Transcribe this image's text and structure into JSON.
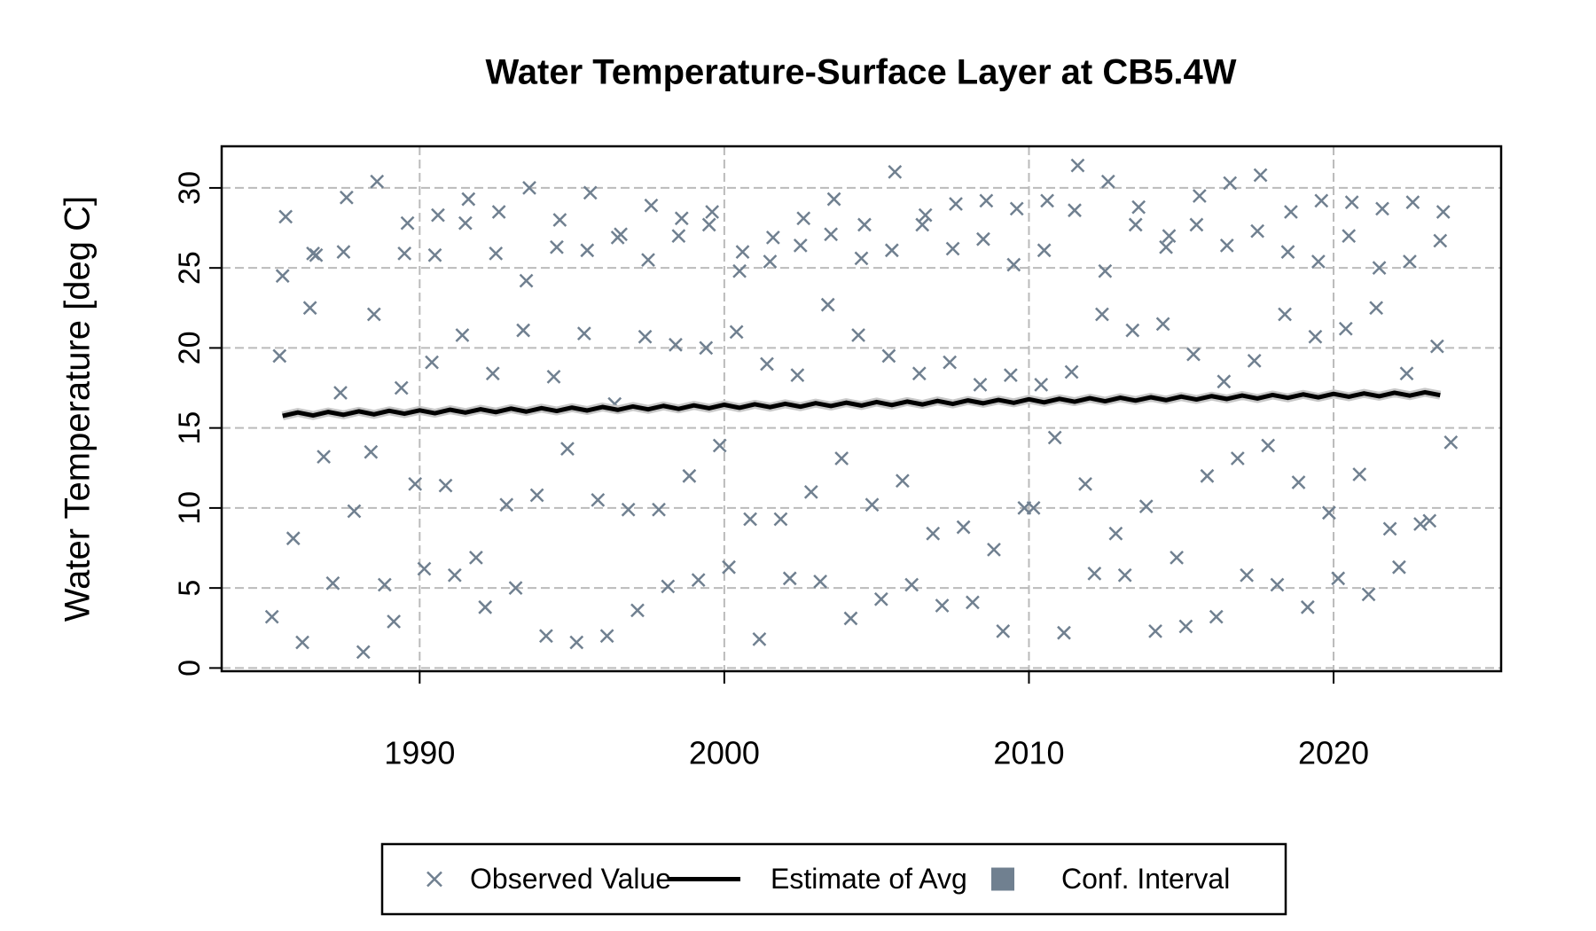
{
  "chart_data": {
    "type": "scatter",
    "title": "Water Temperature-Surface Layer at CB5.4W",
    "y_label": "Water Temperature [deg C]",
    "xlim": [
      1983.5,
      2025.5
    ],
    "ylim": [
      -0.2,
      32.6
    ],
    "xticks": [
      1990,
      2000,
      2010,
      2020
    ],
    "yticks": [
      0,
      5,
      10,
      15,
      20,
      25,
      30
    ],
    "grid": true,
    "legend_position": "bottom",
    "series": [
      {
        "name": "Observed Value",
        "color": "#708090",
        "marker": "x",
        "x": [
          1985.15,
          1985.4,
          1985.5,
          1985.6,
          1985.85,
          1986.15,
          1986.4,
          1986.5,
          1986.6,
          1986.85,
          1987.15,
          1987.4,
          1987.5,
          1987.6,
          1987.85,
          1988.15,
          1988.4,
          1988.5,
          1988.6,
          1988.85,
          1989.15,
          1989.4,
          1989.5,
          1989.6,
          1989.85,
          1990.15,
          1990.4,
          1990.5,
          1990.6,
          1990.85,
          1991.15,
          1991.4,
          1991.5,
          1991.6,
          1991.85,
          1992.15,
          1992.4,
          1992.5,
          1992.6,
          1992.85,
          1993.15,
          1993.4,
          1993.5,
          1993.6,
          1993.85,
          1994.15,
          1994.4,
          1994.5,
          1994.6,
          1994.85,
          1995.15,
          1995.4,
          1995.5,
          1995.6,
          1995.85,
          1996.15,
          1996.4,
          1996.5,
          1996.6,
          1996.85,
          1997.15,
          1997.4,
          1997.5,
          1997.6,
          1997.85,
          1998.15,
          1998.4,
          1998.5,
          1998.6,
          1998.85,
          1999.15,
          1999.4,
          1999.5,
          1999.6,
          1999.85,
          2000.15,
          2000.4,
          2000.5,
          2000.6,
          2000.85,
          2001.15,
          2001.4,
          2001.5,
          2001.6,
          2001.85,
          2002.15,
          2002.4,
          2002.5,
          2002.6,
          2002.85,
          2003.15,
          2003.4,
          2003.5,
          2003.6,
          2003.85,
          2004.15,
          2004.4,
          2004.5,
          2004.6,
          2004.85,
          2005.15,
          2005.4,
          2005.5,
          2005.6,
          2005.85,
          2006.15,
          2006.4,
          2006.5,
          2006.6,
          2006.85,
          2007.15,
          2007.4,
          2007.5,
          2007.6,
          2007.85,
          2008.15,
          2008.4,
          2008.5,
          2008.6,
          2008.85,
          2009.15,
          2009.4,
          2009.5,
          2009.6,
          2009.85,
          2010.15,
          2010.4,
          2010.5,
          2010.6,
          2010.85,
          2011.15,
          2011.4,
          2011.5,
          2011.6,
          2011.85,
          2012.15,
          2012.4,
          2012.5,
          2012.6,
          2012.85,
          2013.15,
          2013.4,
          2013.5,
          2013.6,
          2013.85,
          2014.15,
          2014.4,
          2014.5,
          2014.6,
          2014.85,
          2015.15,
          2015.4,
          2015.5,
          2015.6,
          2015.85,
          2016.15,
          2016.4,
          2016.5,
          2016.6,
          2016.85,
          2017.15,
          2017.4,
          2017.5,
          2017.6,
          2017.85,
          2018.15,
          2018.4,
          2018.5,
          2018.6,
          2018.85,
          2019.15,
          2019.4,
          2019.5,
          2019.6,
          2019.85,
          2020.15,
          2020.4,
          2020.5,
          2020.6,
          2020.85,
          2021.15,
          2021.4,
          2021.5,
          2021.6,
          2021.85,
          2022.15,
          2022.4,
          2022.5,
          2022.6,
          2022.85,
          2023.15,
          2023.4,
          2023.5,
          2023.6,
          2023.85
        ],
        "values": [
          3.2,
          19.5,
          24.5,
          28.2,
          8.1,
          1.6,
          22.5,
          25.9,
          25.8,
          13.2,
          5.3,
          17.2,
          26.0,
          29.4,
          9.8,
          1.0,
          13.5,
          22.1,
          30.4,
          5.2,
          2.9,
          17.5,
          25.9,
          27.8,
          11.5,
          6.2,
          19.1,
          25.8,
          28.3,
          11.4,
          5.8,
          20.8,
          27.8,
          29.3,
          6.9,
          3.8,
          18.4,
          25.9,
          28.5,
          10.2,
          5.0,
          21.1,
          24.2,
          30.0,
          10.8,
          2.0,
          18.2,
          26.3,
          28.0,
          13.7,
          1.6,
          20.9,
          26.1,
          29.7,
          10.5,
          2.0,
          16.5,
          26.9,
          27.1,
          9.9,
          3.6,
          20.7,
          25.5,
          28.9,
          9.9,
          5.1,
          20.2,
          27.0,
          28.1,
          12.0,
          5.5,
          20.0,
          27.7,
          28.5,
          13.9,
          6.3,
          21.0,
          24.8,
          26.0,
          9.3,
          1.8,
          19.0,
          25.4,
          26.9,
          9.3,
          5.6,
          18.3,
          26.4,
          28.1,
          11.0,
          5.4,
          22.7,
          27.1,
          29.3,
          13.1,
          3.1,
          20.8,
          25.6,
          27.7,
          10.2,
          4.3,
          19.5,
          26.1,
          31.0,
          11.7,
          5.2,
          18.4,
          27.7,
          28.3,
          8.4,
          3.9,
          19.1,
          26.2,
          29.0,
          8.8,
          4.1,
          17.7,
          26.8,
          29.2,
          7.4,
          2.3,
          18.3,
          25.2,
          28.7,
          10.0,
          10.0,
          17.7,
          26.1,
          29.2,
          14.4,
          2.2,
          18.5,
          28.6,
          31.4,
          11.5,
          5.9,
          22.1,
          24.8,
          30.4,
          8.4,
          5.8,
          21.1,
          27.7,
          28.8,
          10.1,
          2.3,
          21.5,
          26.3,
          27.0,
          6.9,
          2.6,
          19.6,
          27.7,
          29.5,
          12.0,
          3.2,
          17.9,
          26.4,
          30.3,
          13.1,
          5.8,
          19.2,
          27.3,
          30.8,
          13.9,
          5.2,
          22.1,
          26.0,
          28.5,
          11.6,
          3.8,
          20.7,
          25.4,
          29.2,
          9.7,
          5.6,
          21.2,
          27.0,
          29.1,
          12.1,
          4.6,
          22.5,
          25.0,
          28.7,
          8.7,
          6.3,
          18.4,
          25.4,
          29.1,
          9.0,
          9.2,
          20.1,
          26.7,
          28.5,
          14.1
        ]
      },
      {
        "name": "Estimate of Avg",
        "color": "#000000",
        "marker": "line",
        "x": [
          1985.5,
          1986,
          1986.5,
          1987,
          1987.5,
          1988,
          1988.5,
          1989,
          1989.5,
          1990,
          1990.5,
          1991,
          1991.5,
          1992,
          1992.5,
          1993,
          1993.5,
          1994,
          1994.5,
          1995,
          1995.5,
          1996,
          1996.5,
          1997,
          1997.5,
          1998,
          1998.5,
          1999,
          1999.5,
          2000,
          2000.5,
          2001,
          2001.5,
          2002,
          2002.5,
          2003,
          2003.5,
          2004,
          2004.5,
          2005,
          2005.5,
          2006,
          2006.5,
          2007,
          2007.5,
          2008,
          2008.5,
          2009,
          2009.5,
          2010,
          2010.5,
          2011,
          2011.5,
          2012,
          2012.5,
          2013,
          2013.5,
          2014,
          2014.5,
          2015,
          2015.5,
          2016,
          2016.5,
          2017,
          2017.5,
          2018,
          2018.5,
          2019,
          2019.5,
          2020,
          2020.5,
          2021,
          2021.5,
          2022,
          2022.5,
          2023,
          2023.5
        ],
        "values": [
          15.75,
          15.97,
          15.78,
          16.0,
          15.82,
          16.04,
          15.85,
          16.07,
          15.89,
          16.1,
          15.92,
          16.14,
          15.96,
          16.17,
          15.99,
          16.21,
          16.02,
          16.24,
          16.06,
          16.27,
          16.09,
          16.31,
          16.13,
          16.34,
          16.16,
          16.38,
          16.19,
          16.41,
          16.23,
          16.45,
          16.26,
          16.48,
          16.3,
          16.51,
          16.33,
          16.55,
          16.37,
          16.58,
          16.4,
          16.62,
          16.43,
          16.65,
          16.47,
          16.69,
          16.5,
          16.72,
          16.54,
          16.75,
          16.57,
          16.79,
          16.6,
          16.82,
          16.64,
          16.86,
          16.67,
          16.89,
          16.71,
          16.92,
          16.74,
          16.96,
          16.78,
          16.99,
          16.81,
          17.03,
          16.84,
          17.06,
          16.88,
          17.1,
          16.91,
          17.13,
          16.95,
          17.16,
          16.98,
          17.2,
          17.02,
          17.23,
          17.05
        ]
      },
      {
        "name": "Conf. Interval",
        "color": "#708090",
        "marker": "square"
      }
    ]
  }
}
